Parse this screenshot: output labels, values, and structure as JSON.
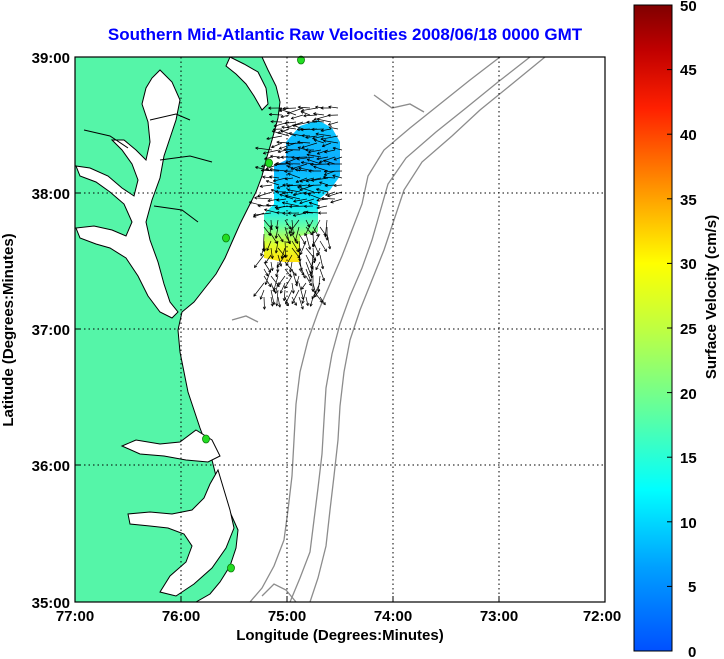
{
  "title": "Southern Mid-Atlantic Raw Velocities 2008/06/18 0000 GMT",
  "xlabel": "Longitude (Degrees:Minutes)",
  "ylabel": "Latitude (Degrees:Minutes)",
  "colorbar_label": "Surface Velocity (cm/s)",
  "x_ticks": [
    "77:00",
    "76:00",
    "75:00",
    "74:00",
    "73:00",
    "72:00"
  ],
  "y_ticks": [
    "39:00",
    "38:00",
    "37:00",
    "36:00",
    "35:00"
  ],
  "colorbar_ticks": [
    "50",
    "45",
    "40",
    "35",
    "30",
    "25",
    "20",
    "15",
    "10",
    "5",
    "0"
  ],
  "colors": {
    "land": "#55f5a8",
    "coastline": "#000000",
    "bathymetry": "#8c8c8c",
    "station": "#22dd22",
    "title": "#0000ff"
  },
  "chart_data": {
    "type": "quiver-map",
    "xlim_deg_west": [
      77,
      72
    ],
    "ylim_deg_north": [
      35,
      39
    ],
    "colorbar_range_cm_s": [
      0,
      50
    ],
    "stations": [
      {
        "lon": 74.85,
        "lat": 38.98
      },
      {
        "lon": 75.09,
        "lat": 38.22
      },
      {
        "lon": 75.59,
        "lat": 37.67
      },
      {
        "lon": 75.73,
        "lat": 36.19
      },
      {
        "lon": 75.48,
        "lat": 35.26
      }
    ]
  }
}
